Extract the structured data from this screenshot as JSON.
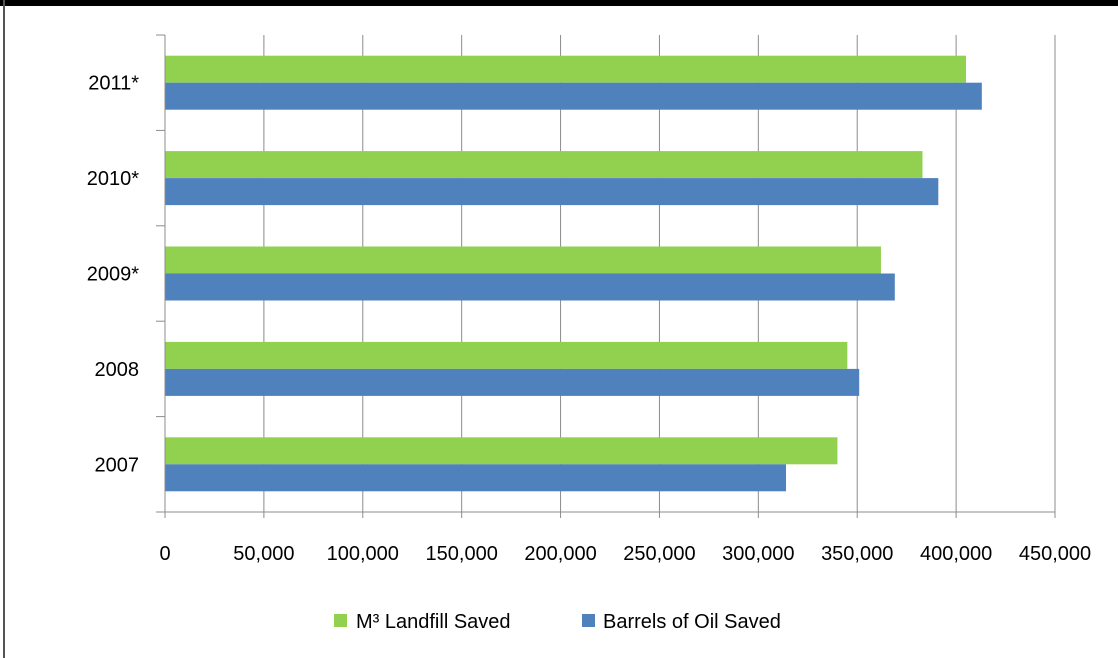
{
  "chart_data": {
    "type": "bar",
    "orientation": "horizontal",
    "title": "",
    "xlabel": "",
    "ylabel": "",
    "categories": [
      "2007",
      "2008",
      "2009*",
      "2010*",
      "2011*"
    ],
    "series": [
      {
        "name": "M³ Landfill Saved",
        "color": "#92d050",
        "values": [
          340000,
          345000,
          362000,
          383000,
          405000
        ]
      },
      {
        "name": "Barrels of Oil Saved",
        "color": "#4f81bd",
        "values": [
          314000,
          351000,
          369000,
          391000,
          413000
        ]
      }
    ],
    "xlim": [
      0,
      450000
    ],
    "xticks": [
      "0",
      "50,000",
      "100,000",
      "150,000",
      "200,000",
      "250,000",
      "300,000",
      "350,000",
      "400,000",
      "450,000"
    ],
    "grid": "vertical",
    "legend": "bottom"
  }
}
